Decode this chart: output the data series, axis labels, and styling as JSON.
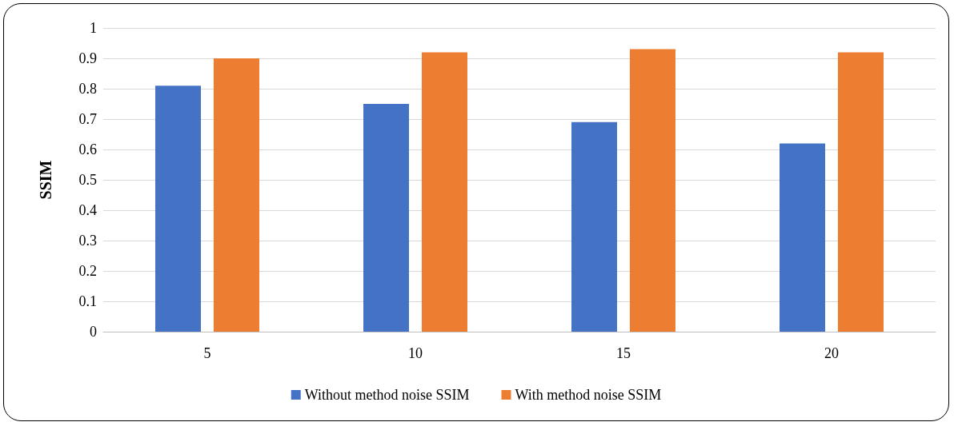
{
  "chart_data": {
    "type": "bar",
    "ylabel": "SSIM",
    "categories": [
      "5",
      "10",
      "15",
      "20"
    ],
    "series": [
      {
        "name": "Without method noise SSIM",
        "color": "#4472c4",
        "values": [
          0.81,
          0.75,
          0.69,
          0.62
        ]
      },
      {
        "name": "With method noise SSIM",
        "color": "#ed7d31",
        "values": [
          0.9,
          0.92,
          0.93,
          0.92
        ]
      }
    ],
    "ylim": [
      0,
      1
    ],
    "yticks": [
      0,
      0.1,
      0.2,
      0.3,
      0.4,
      0.5,
      0.6,
      0.7,
      0.8,
      0.9,
      1
    ],
    "grid": "y",
    "legend": "bottom"
  }
}
